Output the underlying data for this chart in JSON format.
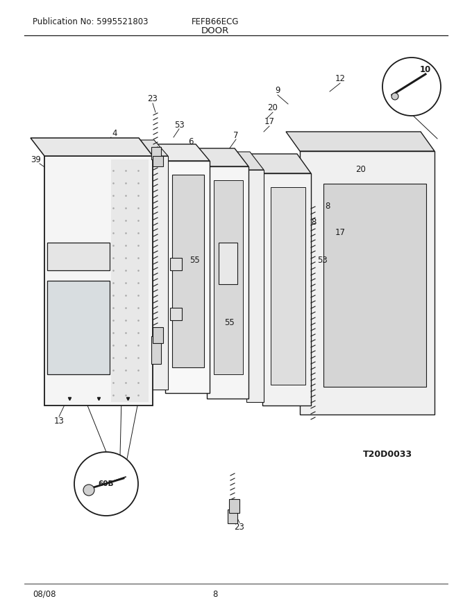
{
  "pub_no": "Publication No: 5995521803",
  "model": "FEFB66ECG",
  "section": "DOOR",
  "date": "08/08",
  "page": "8",
  "diagram_id": "T20D0033",
  "bg_color": "#ffffff",
  "line_color": "#000000",
  "header_font_size": 8.5,
  "title_font_size": 9.5,
  "footer_font_size": 8.5,
  "page_width": 6.8,
  "page_height": 8.8
}
